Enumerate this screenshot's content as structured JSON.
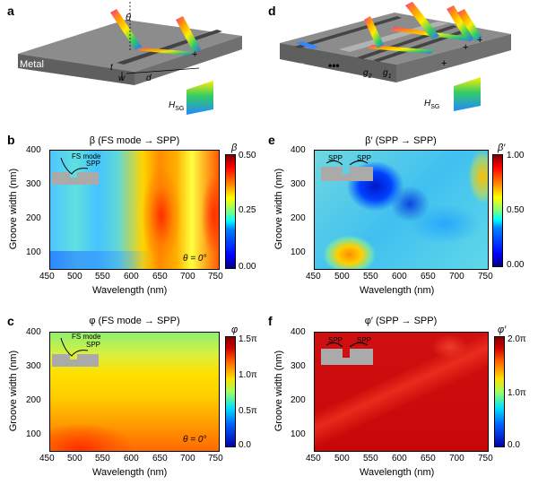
{
  "panels": {
    "a": {
      "label": "a",
      "metal": "Metal",
      "t": "t",
      "w": "w",
      "d": "d",
      "theta": "θ",
      "hsg": "H",
      "hsg_sub": "SG"
    },
    "d": {
      "label": "d",
      "gN": "g",
      "gN_sub": "N",
      "g2": "g",
      "g2_sub": "2",
      "g1": "g",
      "g1_sub": "1",
      "dots": "•••",
      "hsg": "H",
      "hsg_sub": "SG"
    },
    "b": {
      "label": "b",
      "title": "β (FS mode → SPP)",
      "cbar_symbol": "β",
      "cbar_ticks": [
        "0.50",
        "0.25",
        "0.00"
      ],
      "angle": "θ = 0°",
      "inset_fs": "FS mode",
      "inset_spp": "SPP"
    },
    "e": {
      "label": "e",
      "title": "β′ (SPP → SPP)",
      "cbar_symbol": "β′",
      "cbar_ticks": [
        "1.00",
        "0.50",
        "0.00"
      ],
      "inset_spp1": "SPP",
      "inset_spp2": "SPP"
    },
    "c": {
      "label": "c",
      "title": "φ (FS mode → SPP)",
      "cbar_symbol": "φ",
      "cbar_ticks": [
        "1.5π",
        "1.0π",
        "0.5π",
        "0.0"
      ],
      "angle": "θ = 0°",
      "inset_fs": "FS mode",
      "inset_spp": "SPP"
    },
    "f": {
      "label": "f",
      "title": "φ′ (SPP → SPP)",
      "cbar_symbol": "φ′",
      "cbar_ticks": [
        "2.0π",
        "1.0π",
        "0.0"
      ],
      "inset_spp1": "SPP",
      "inset_spp2": "SPP"
    }
  },
  "axes": {
    "xlabel": "Wavelength (nm)",
    "ylabel": "Groove width (nm)",
    "xticks": [
      "450",
      "500",
      "550",
      "600",
      "650",
      "700",
      "750"
    ],
    "yticks": [
      "400",
      "300",
      "200",
      "100"
    ]
  },
  "colors": {
    "metal_top": "#8a8a8a",
    "metal_side": "#5a5a5a"
  }
}
